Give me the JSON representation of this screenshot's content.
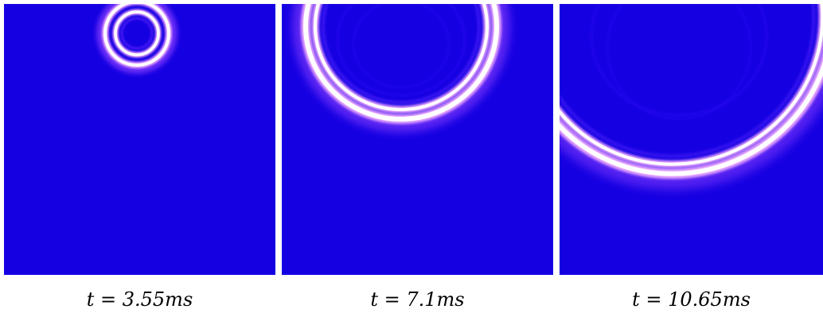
{
  "panels": [
    {
      "caption": "t = 3.55ms"
    },
    {
      "caption": "t = 7.1ms"
    },
    {
      "caption": "t = 10.65ms"
    }
  ],
  "colors": {
    "background": "#1500e2",
    "ring_core": "#ffffff",
    "ring_glow": "#e8a6ff",
    "ring_edge": "#8a3cff"
  }
}
